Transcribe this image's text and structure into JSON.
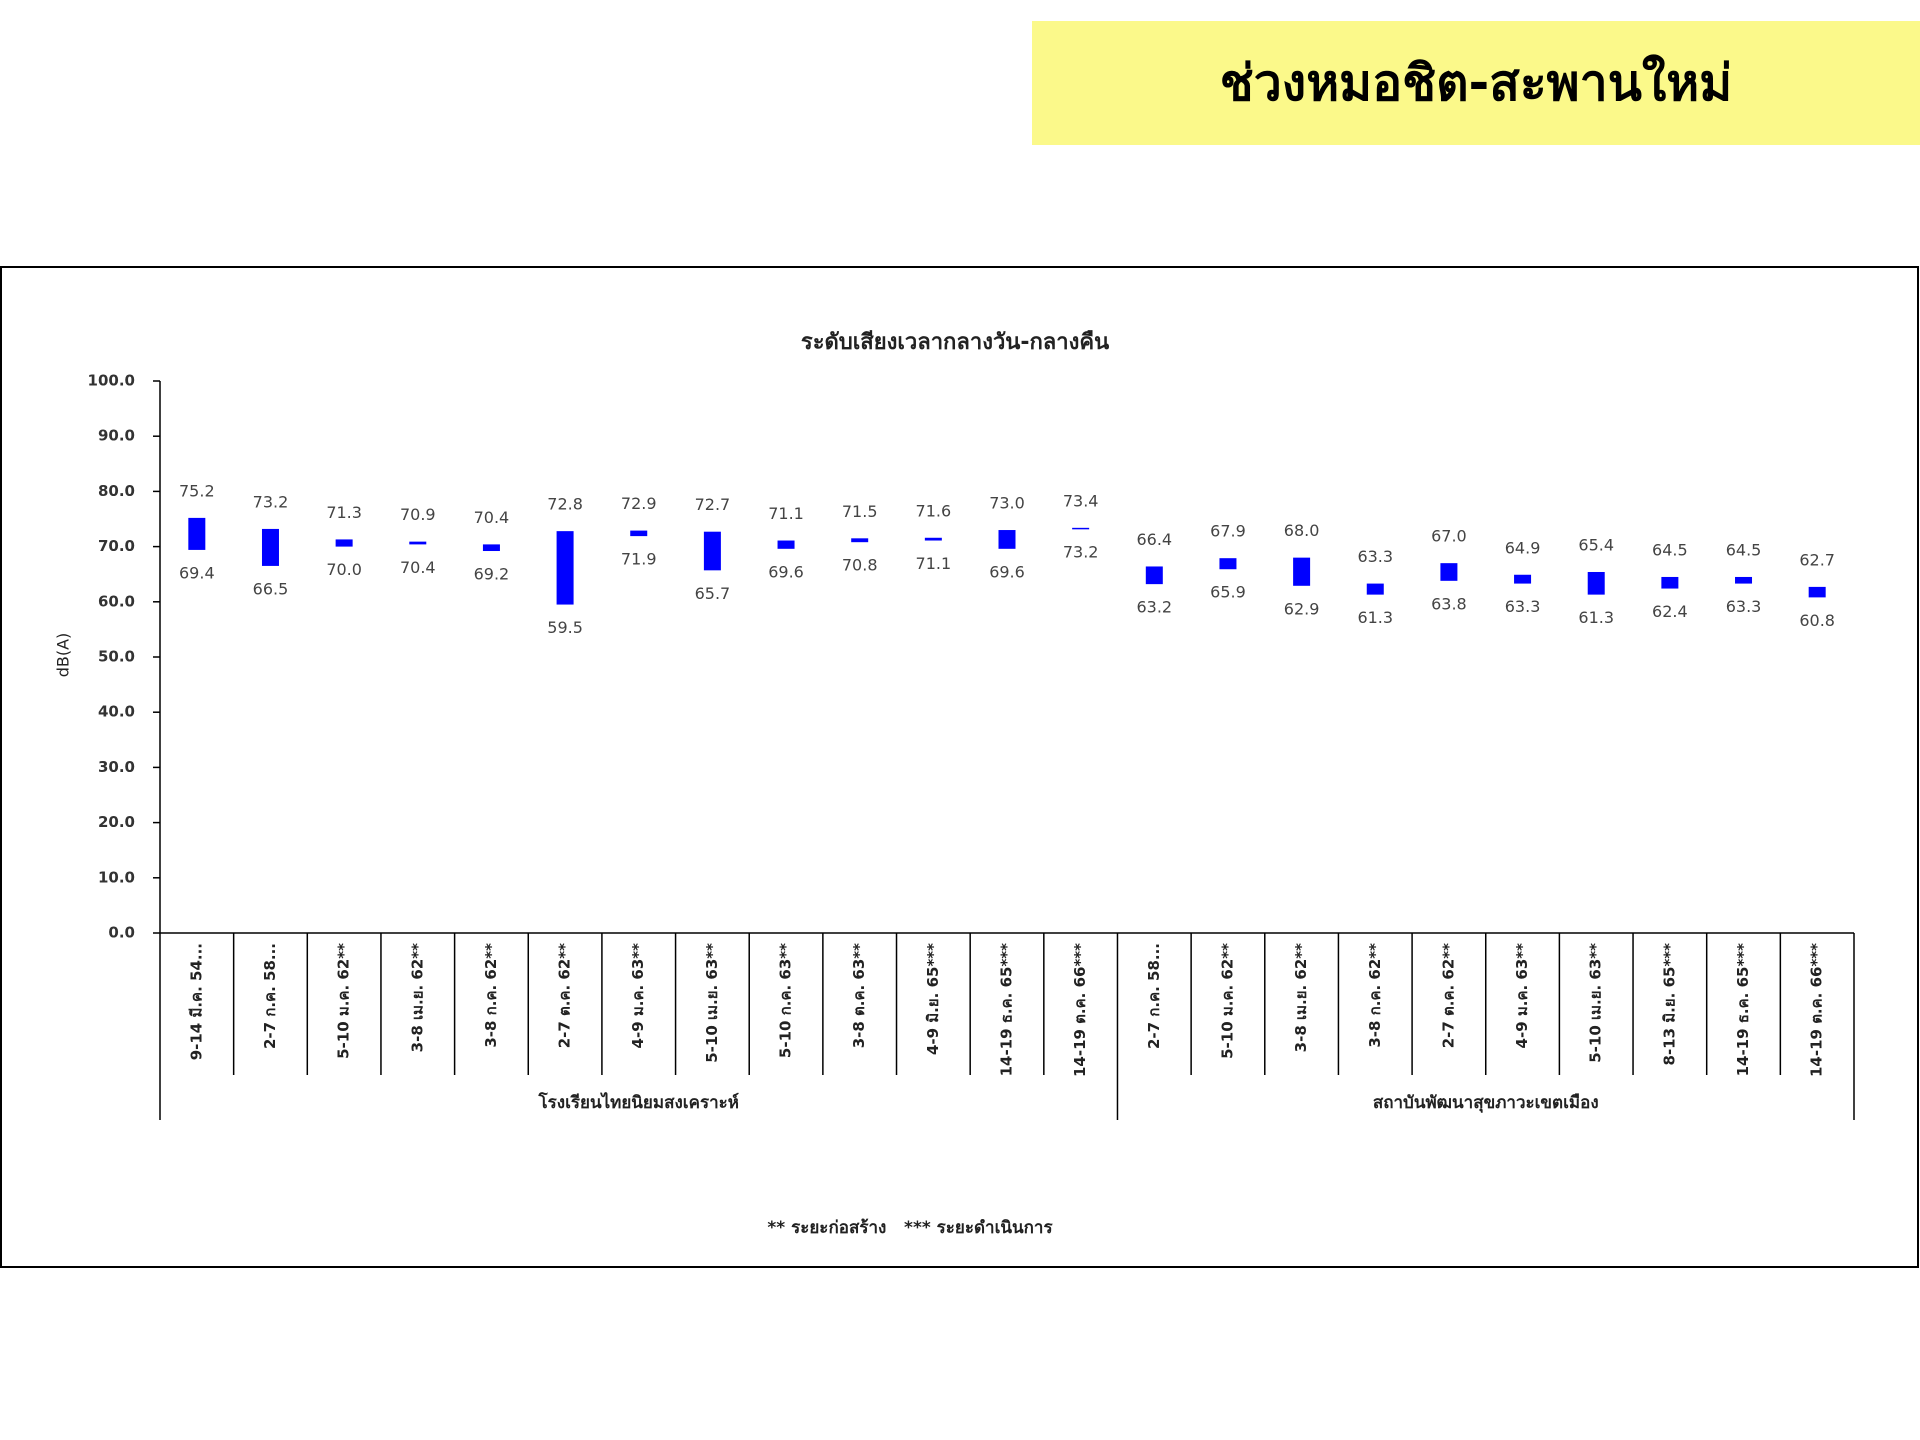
{
  "header": {
    "title": "ช่วงหมอชิต-สะพานใหม่"
  },
  "chart_data": {
    "type": "floating-bar",
    "title": "ระดับเสียงเวลากลางวัน-กลางคืน",
    "y_label": "dB(A)",
    "color": "#0000ff",
    "ylim": [
      0,
      100
    ],
    "yticks": [
      {
        "value": 0,
        "label": "0.0"
      },
      {
        "value": 10,
        "label": "10.0"
      },
      {
        "value": 20,
        "label": "20.0"
      },
      {
        "value": 30,
        "label": "30.0"
      },
      {
        "value": 40,
        "label": "40.0"
      },
      {
        "value": 50,
        "label": "50.0"
      },
      {
        "value": 60,
        "label": "60.0"
      },
      {
        "value": 70,
        "label": "70.0"
      },
      {
        "value": 80,
        "label": "80.0"
      },
      {
        "value": 90,
        "label": "90.0"
      },
      {
        "value": 100,
        "label": "100.0"
      }
    ],
    "groups": [
      {
        "name": "โรงเรียนไทยนิยมสงเคราะห์",
        "categories": [
          "9-14 มี.ค. 54...",
          "2-7 ก.ค. 58...",
          "5-10 ม.ค. 62**",
          "3-8 เม.ย. 62**",
          "3-8 ก.ค. 62**",
          "2-7 ต.ค. 62**",
          "4-9 ม.ค. 63**",
          "5-10 เม.ย. 63**",
          "5-10 ก.ค. 63**",
          "3-8 ต.ค. 63**",
          "4-9 มิ.ย. 65***",
          "14-19 ธ.ค. 65***",
          "14-19 ต.ค. 66***"
        ],
        "highs": [
          75.2,
          73.2,
          71.3,
          70.9,
          70.4,
          72.8,
          72.9,
          72.7,
          71.1,
          71.5,
          71.6,
          73.0,
          73.4
        ],
        "high_labels": [
          "75.2",
          "73.2",
          "71.3",
          "70.9",
          "70.4",
          "72.8",
          "72.9",
          "72.7",
          "71.1",
          "71.5",
          "71.6",
          "73.0",
          "73.4"
        ],
        "lows": [
          69.4,
          66.5,
          70.0,
          70.4,
          69.2,
          59.5,
          71.9,
          65.7,
          69.6,
          70.8,
          71.1,
          69.6,
          73.2
        ],
        "low_labels": [
          "69.4",
          "66.5",
          "70.0",
          "70.4",
          "69.2",
          "59.5",
          "71.9",
          "65.7",
          "69.6",
          "70.8",
          "71.1",
          "69.6",
          "73.2"
        ]
      },
      {
        "name": "สถาบันพัฒนาสุขภาวะเขตเมือง",
        "categories": [
          "2-7 ก.ค. 58...",
          "5-10 ม.ค. 62**",
          "3-8 เม.ย. 62**",
          "3-8 ก.ค. 62**",
          "2-7 ต.ค. 62**",
          "4-9 ม.ค. 63**",
          "5-10 เม.ย. 63**",
          "8-13 มิ.ย. 65***",
          "14-19 ธ.ค. 65***",
          "14-19 ต.ค. 66***"
        ],
        "highs": [
          66.4,
          67.9,
          68.0,
          63.3,
          67.0,
          64.9,
          65.4,
          64.5,
          64.5,
          62.7
        ],
        "high_labels": [
          "66.4",
          "67.9",
          "68.0",
          "63.3",
          "67.0",
          "64.9",
          "65.4",
          "64.5",
          "64.5",
          "62.7"
        ],
        "lows": [
          63.2,
          65.9,
          62.9,
          61.3,
          63.8,
          63.3,
          61.3,
          62.4,
          63.3,
          60.8
        ],
        "low_labels": [
          "63.2",
          "65.9",
          "62.9",
          "61.3",
          "63.8",
          "63.3",
          "61.3",
          "62.4",
          "63.3",
          "60.8"
        ]
      }
    ],
    "note": "** ระยะก่อสร้าง   *** ระยะดำเนินการ"
  }
}
